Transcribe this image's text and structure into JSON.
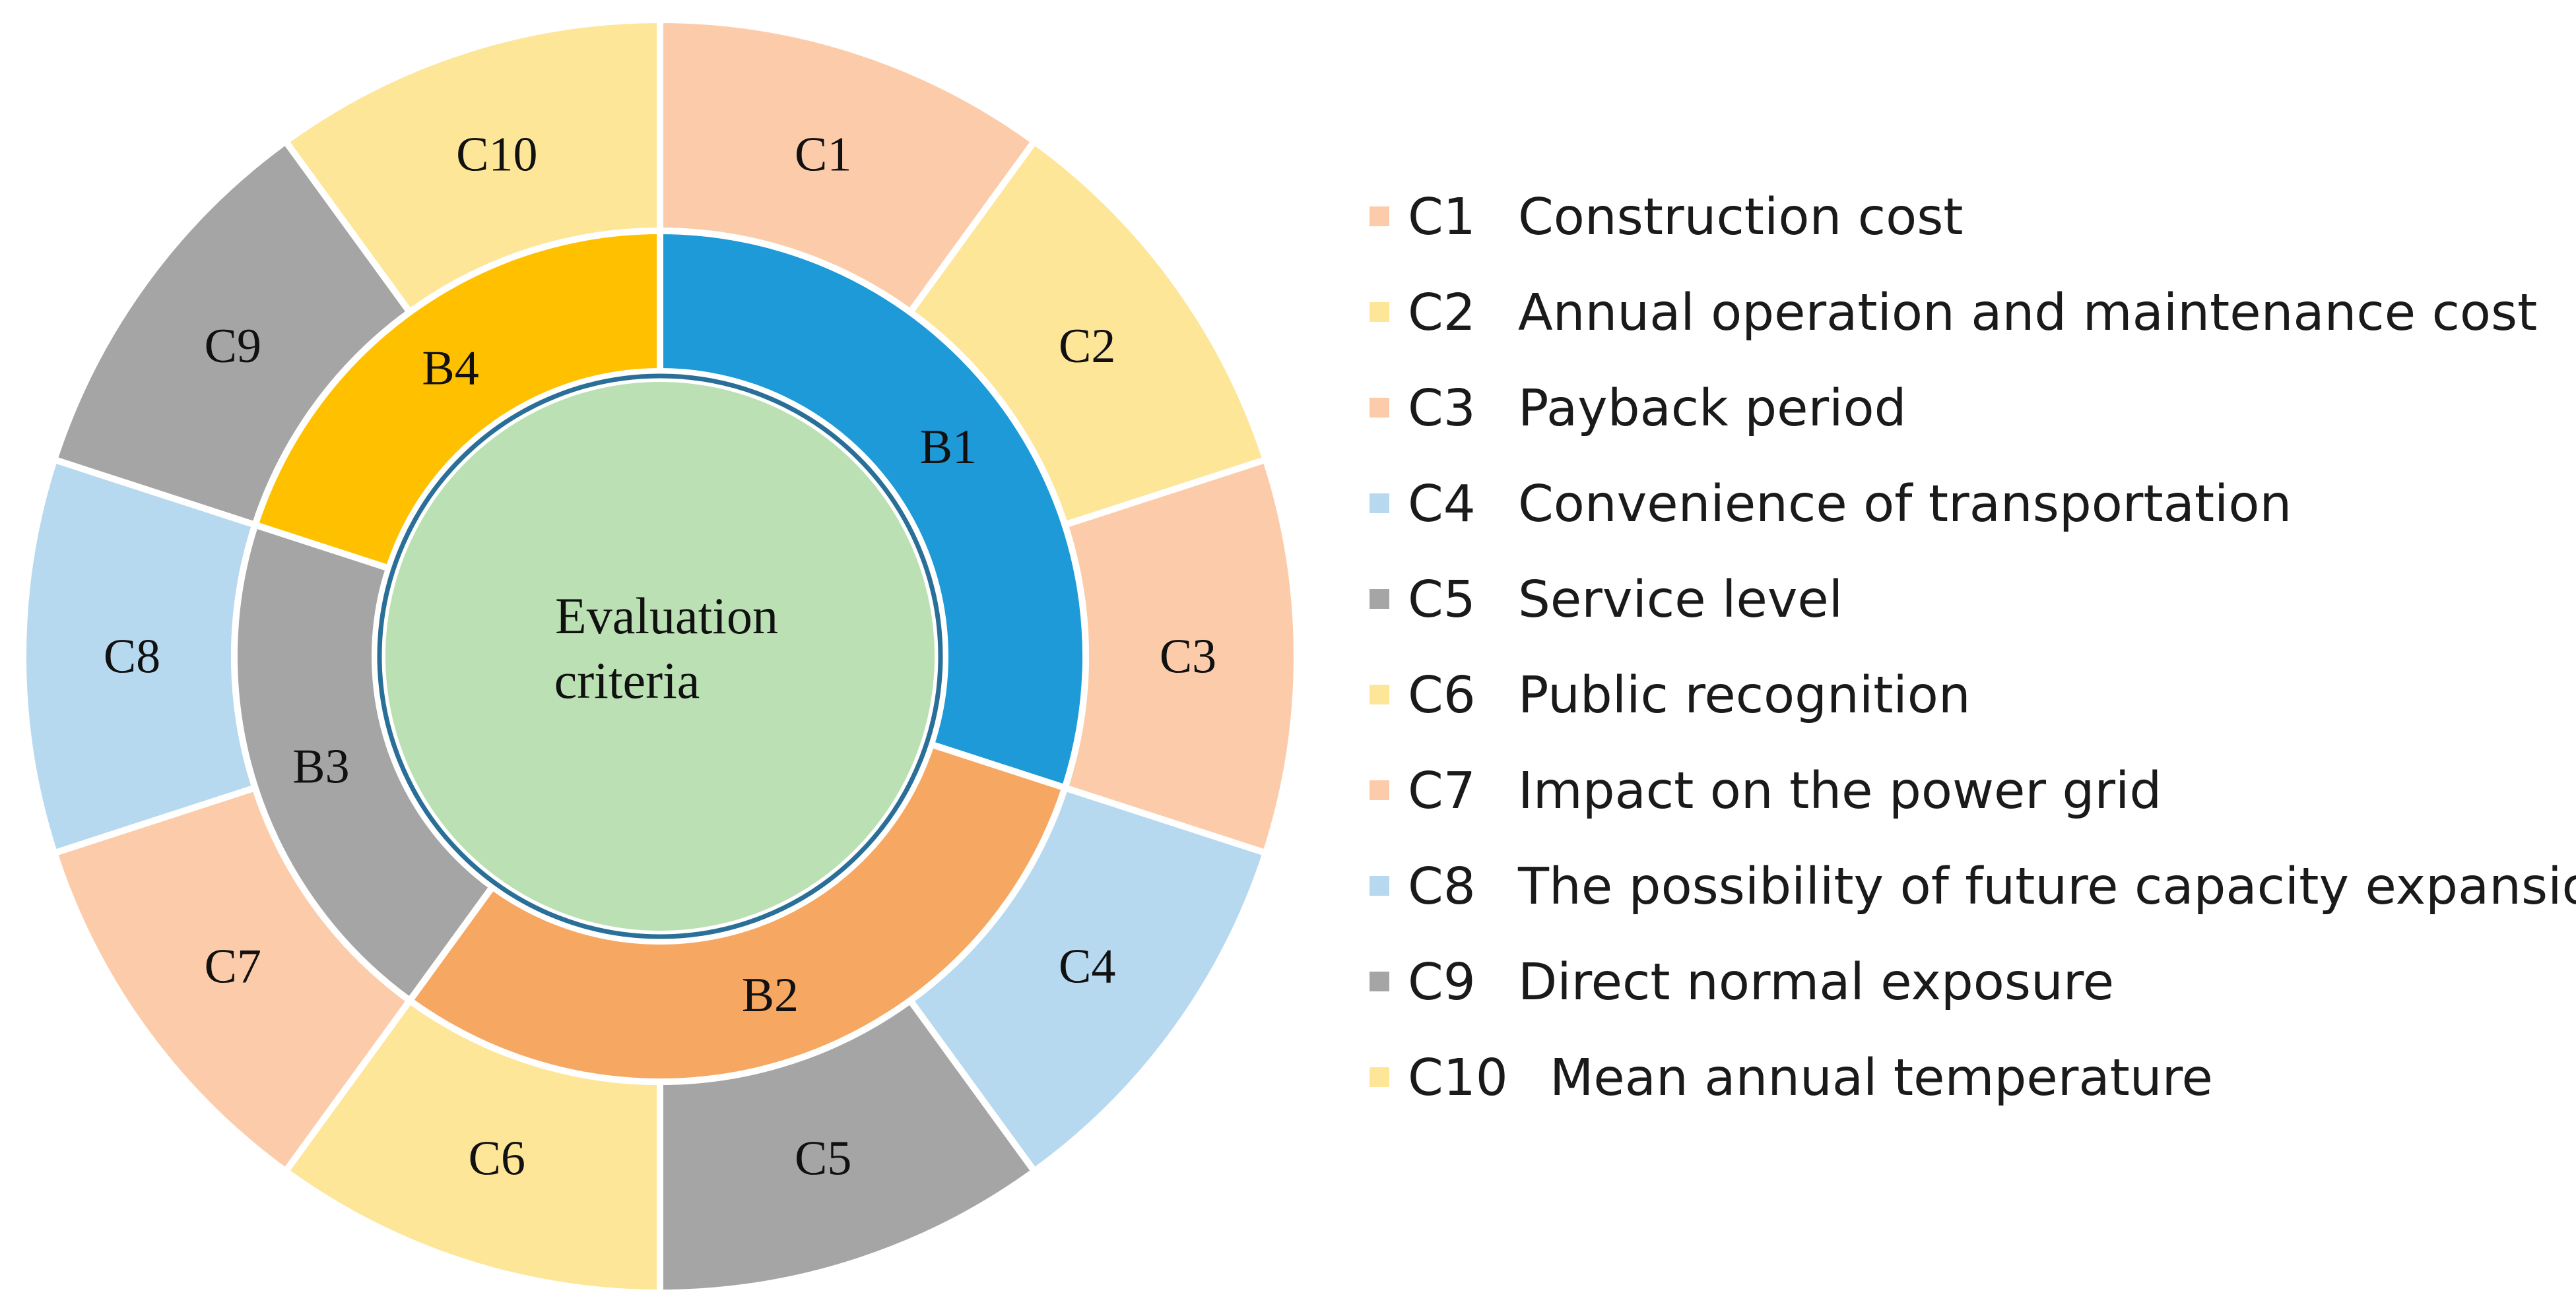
{
  "center": {
    "label_line1": "Evaluation",
    "label_line2": "criteria",
    "color": "#bbe0b3",
    "ring_color": "#2a6f97"
  },
  "inner_ring": [
    {
      "id": "B1",
      "label": "B1",
      "color": "#1d9ad7",
      "start_deg": 0,
      "end_deg": 108
    },
    {
      "id": "B2",
      "label": "B2",
      "color": "#f6a862",
      "start_deg": 108,
      "end_deg": 216
    },
    {
      "id": "B3",
      "label": "B3",
      "color": "#a5a5a5",
      "start_deg": 216,
      "end_deg": 288
    },
    {
      "id": "B4",
      "label": "B4",
      "color": "#ffc000",
      "start_deg": 288,
      "end_deg": 360
    }
  ],
  "outer_ring": [
    {
      "id": "C1",
      "label": "C1",
      "color": "#fcccaa",
      "start_deg": 0,
      "end_deg": 36
    },
    {
      "id": "C2",
      "label": "C2",
      "color": "#fee699",
      "start_deg": 36,
      "end_deg": 72
    },
    {
      "id": "C3",
      "label": "C3",
      "color": "#fcccaa",
      "start_deg": 72,
      "end_deg": 108
    },
    {
      "id": "C4",
      "label": "C4",
      "color": "#b6d9f0",
      "start_deg": 108,
      "end_deg": 144
    },
    {
      "id": "C5",
      "label": "C5",
      "color": "#a5a5a5",
      "start_deg": 144,
      "end_deg": 180
    },
    {
      "id": "C6",
      "label": "C6",
      "color": "#fee699",
      "start_deg": 180,
      "end_deg": 216
    },
    {
      "id": "C7",
      "label": "C7",
      "color": "#fcccaa",
      "start_deg": 216,
      "end_deg": 252
    },
    {
      "id": "C8",
      "label": "C8",
      "color": "#b6d9f0",
      "start_deg": 252,
      "end_deg": 288
    },
    {
      "id": "C9",
      "label": "C9",
      "color": "#a5a5a5",
      "start_deg": 288,
      "end_deg": 324
    },
    {
      "id": "C10",
      "label": "C10",
      "color": "#fee699",
      "start_deg": 324,
      "end_deg": 360
    }
  ],
  "legend": [
    {
      "code": "C1",
      "text": "Construction cost",
      "color": "#fcccaa"
    },
    {
      "code": "C2",
      "text": "Annual operation and maintenance cost",
      "color": "#fee699"
    },
    {
      "code": "C3",
      "text": "Payback period",
      "color": "#fcccaa"
    },
    {
      "code": "C4",
      "text": "Convenience of transportation",
      "color": "#b6d9f0"
    },
    {
      "code": "C5",
      "text": "Service level",
      "color": "#a5a5a5"
    },
    {
      "code": "C6",
      "text": "Public recognition",
      "color": "#fee699"
    },
    {
      "code": "C7",
      "text": "Impact on the power grid",
      "color": "#fcccaa"
    },
    {
      "code": "C8",
      "text": "The possibility of future capacity expansion",
      "color": "#b6d9f0"
    },
    {
      "code": "C9",
      "text": "Direct normal exposure",
      "color": "#a5a5a5"
    },
    {
      "code": "C10",
      "text": "Mean annual temperature",
      "color": "#fee699"
    }
  ]
}
